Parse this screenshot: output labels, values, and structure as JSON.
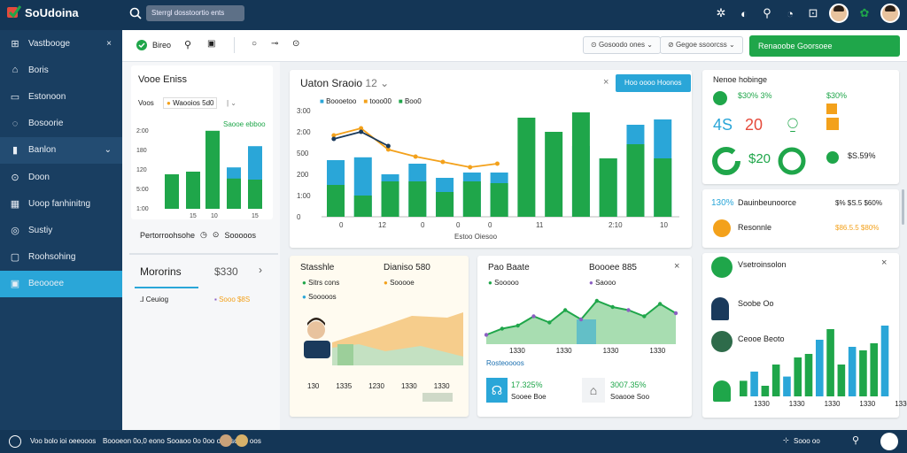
{
  "app": {
    "title": "SoUdoina"
  },
  "topbar": {
    "search_placeholder": "Sterrgl dosstoortio ents"
  },
  "sidebar": {
    "close_label": "×",
    "items": [
      {
        "label": "Vastbooge",
        "icon": "dashboard-icon"
      },
      {
        "label": "Boris",
        "icon": "home-icon"
      },
      {
        "label": "Estonoon",
        "icon": "inbox-icon"
      },
      {
        "label": "Bosoorie",
        "icon": "chat-icon"
      },
      {
        "label": "Banlon",
        "icon": "folder-icon"
      },
      {
        "label": "Doon",
        "icon": "search-icon"
      },
      {
        "label": "Uoop fanhinitng",
        "icon": "calendar-icon"
      },
      {
        "label": "Sustiy",
        "icon": "chart-icon"
      },
      {
        "label": "Roohsohing",
        "icon": "lock-icon"
      },
      {
        "label": "Beoooee",
        "icon": "apps-icon"
      }
    ]
  },
  "toolbar": {
    "tab_label": "Bireo",
    "filter1": "Gosoodo ones",
    "filter2": "Gegoe ssoorcss",
    "action_label": "Renaoobe  Goorsoee"
  },
  "left_panel": {
    "title": "Vooe Eniss",
    "row_label": "Voos",
    "row_value": "Waooios 5d0",
    "row_value2": "Saooe ebboo",
    "y_ticks": [
      "2:00",
      "180",
      "120",
      "5:00",
      "1:00"
    ],
    "x_ticks": [
      "15",
      "10",
      "15"
    ],
    "footer_label": "Pertorroohsohe",
    "footer_value": "Sooooos",
    "metric_label": "Mororins",
    "metric_value": "$330",
    "metric_sub": "Ceuiog",
    "metric_sub2": "Sooo  $8S"
  },
  "main_chart": {
    "title": "Uaton Sraoio",
    "count": "12",
    "button": "Hoo oooo Hoonos",
    "legend": [
      "Boooetoo",
      "tooo00",
      "Boo0"
    ],
    "footer": "Estoo Oiesoo"
  },
  "chart_data": [
    {
      "type": "bar",
      "title": "Uaton Sraoio 12",
      "xlabel": "Estoo Oiesoo",
      "ylim": [
        0,
        3000
      ],
      "y_ticks": [
        "0",
        "1:00",
        "200",
        "500",
        "2:00",
        "3:00",
        "3500"
      ],
      "x_ticks": [
        "0",
        "12",
        "0",
        "0",
        "0",
        "11",
        "2:10",
        "10"
      ],
      "series": [
        {
          "name": "Boooetoo",
          "color": "#2aa6d8",
          "values": [
            1600,
            1680,
            1200,
            1500,
            1100,
            1250,
            1250,
            0,
            0,
            2000,
            1650,
            2600,
            2750
          ]
        },
        {
          "name": "tooo00",
          "color": "#1fa64a",
          "values": [
            900,
            600,
            1000,
            1000,
            700,
            1000,
            950,
            2800,
            2400,
            2950,
            1650,
            2050,
            1650
          ]
        },
        {
          "name": "Boo0",
          "color": "#f3a11b",
          "values": [
            2300,
            2500,
            1900,
            1700,
            1550,
            1400,
            1500
          ]
        }
      ],
      "line": {
        "name": "line",
        "color": "#1a3a5c",
        "values": [
          2200,
          2400,
          2000,
          1700,
          1200,
          1250,
          1300
        ]
      }
    },
    {
      "type": "bar",
      "title": "Vooe Eniss",
      "series": [
        {
          "name": "green",
          "color": "#1fa64a",
          "values": [
            65,
            70,
            147,
            57,
            55
          ]
        },
        {
          "name": "blue",
          "color": "#2aa6d8",
          "values": [
            0,
            0,
            0,
            78,
            118
          ]
        }
      ]
    },
    {
      "type": "area",
      "title": "Pao Baate",
      "series": [
        {
          "name": "Boooo",
          "values": [
            15,
            25,
            30,
            45,
            35,
            55,
            40,
            70,
            60,
            55,
            45,
            65,
            50
          ]
        }
      ]
    }
  ],
  "area_card": {
    "title": "Stasshle",
    "title2": "Dianiso 580",
    "legend1": "Sitrs cons",
    "legend2": "Sooooe",
    "legend3": "Sooooos",
    "x_ticks": [
      "130",
      "1335",
      "1230",
      "1330",
      "1330"
    ]
  },
  "line_card": {
    "title": "Pao Baate",
    "title2": "Boooee 885",
    "legend1": "Sooooo",
    "legend2": "Saooo",
    "x_ticks": [
      "1330",
      "1330",
      "1330",
      "1330"
    ],
    "footer": "Rosteoooos",
    "stat1_value": "17.325%",
    "stat1_label": "Sooee  Boe",
    "stat2_value": "3007.35%",
    "stat2_label": "Soaooe  Soo"
  },
  "right_top": {
    "title": "Nenoe hobinge",
    "stats": [
      {
        "value": "$30% 3%",
        "color": "green"
      },
      {
        "value": "$30%",
        "color": "green"
      },
      {
        "value": "4S",
        "color": "blue"
      },
      {
        "value": "20",
        "color": "red"
      },
      {
        "value": "$S.59%",
        "color": "green"
      },
      {
        "value": "$20",
        "color": "green"
      }
    ]
  },
  "right_mid": {
    "row1_value": "130%",
    "row1_label": "Dauinbeunoorce",
    "row1_right": "$% $S.5 $60%",
    "row2_label": "Resonnle",
    "row2_right": "$86.5.5 $80%"
  },
  "right_bottom": {
    "title": "Vsetroinsolon",
    "person1": "Soobe Oo",
    "person2": "Ceooe Beoto",
    "x_ticks": [
      "1330",
      "1330",
      "1330",
      "1330",
      "1330"
    ],
    "bars": [
      22,
      35,
      15,
      45,
      28,
      55,
      60,
      80,
      95,
      45,
      70,
      65,
      75,
      100
    ]
  },
  "bottombar": {
    "left_text": "Voo bolo ioi oeeooos",
    "mid_text": "Boooeon 0o,0 eono Sooaoo 0o 0oo oo oso oo oos",
    "right_text": "Sooo oo"
  }
}
